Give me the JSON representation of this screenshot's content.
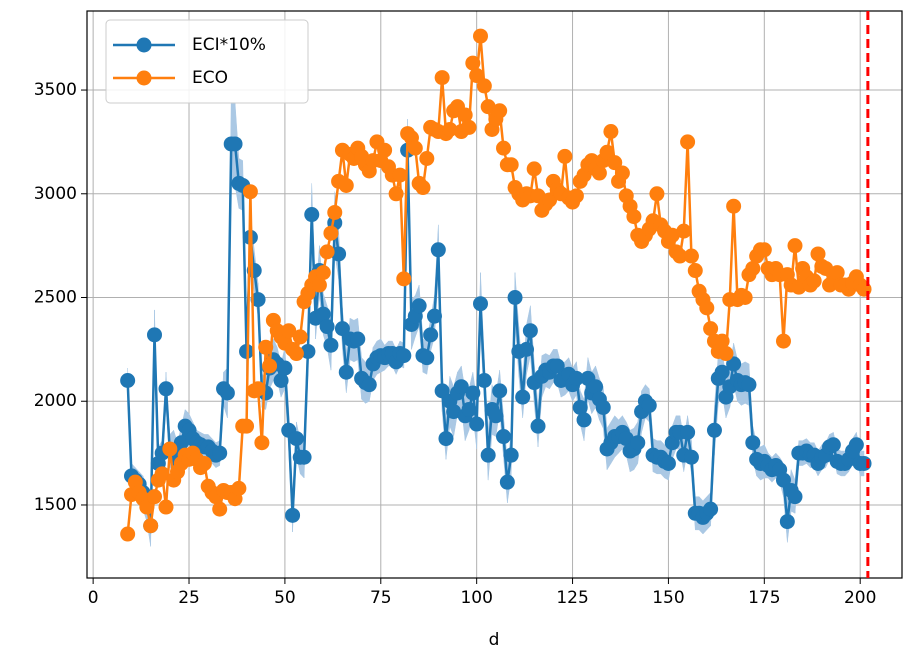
{
  "chart_data": {
    "type": "line",
    "x_label": "d",
    "x": [
      9,
      10,
      11,
      12,
      13,
      14,
      15,
      16,
      17,
      18,
      19,
      20,
      21,
      22,
      23,
      24,
      25,
      26,
      27,
      28,
      29,
      30,
      31,
      32,
      33,
      34,
      35,
      36,
      37,
      38,
      39,
      40,
      41,
      42,
      43,
      44,
      45,
      46,
      47,
      48,
      49,
      50,
      51,
      52,
      53,
      54,
      55,
      56,
      57,
      58,
      59,
      60,
      61,
      62,
      63,
      64,
      65,
      66,
      67,
      68,
      69,
      70,
      71,
      72,
      73,
      74,
      75,
      76,
      77,
      78,
      79,
      80,
      81,
      82,
      83,
      84,
      85,
      86,
      87,
      88,
      89,
      90,
      91,
      92,
      93,
      94,
      95,
      96,
      97,
      98,
      99,
      100,
      101,
      102,
      103,
      104,
      105,
      106,
      107,
      108,
      109,
      110,
      111,
      112,
      113,
      114,
      115,
      116,
      117,
      118,
      119,
      120,
      121,
      122,
      123,
      124,
      125,
      126,
      127,
      128,
      129,
      130,
      131,
      132,
      133,
      134,
      135,
      136,
      137,
      138,
      139,
      140,
      141,
      142,
      143,
      144,
      145,
      146,
      147,
      148,
      149,
      150,
      151,
      152,
      153,
      154,
      155,
      156,
      157,
      158,
      159,
      160,
      161,
      162,
      163,
      164,
      165,
      166,
      167,
      168,
      169,
      170,
      171,
      172,
      173,
      174,
      175,
      176,
      177,
      178,
      179,
      180,
      181,
      182,
      183,
      184,
      185,
      186,
      187,
      188,
      189,
      190,
      191,
      192,
      193,
      194,
      195,
      196,
      197,
      198,
      199,
      200,
      201
    ],
    "series": [
      {
        "name": "ECI*10%",
        "color": "#1f77b4",
        "band_color": "#aac8e4",
        "values": [
          2100,
          1640,
          1620,
          1600,
          1560,
          1500,
          1400,
          2320,
          1700,
          1750,
          2060,
          1760,
          1760,
          1720,
          1800,
          1880,
          1860,
          1820,
          1800,
          1790,
          1780,
          1780,
          1760,
          1740,
          1750,
          2060,
          2040,
          3240,
          3240,
          3050,
          3040,
          2240,
          2790,
          2630,
          2490,
          2050,
          2040,
          2160,
          2200,
          2180,
          2100,
          2160,
          1860,
          1450,
          1820,
          1730,
          1730,
          2240,
          2900,
          2400,
          2630,
          2420,
          2360,
          2270,
          2860,
          2710,
          2350,
          2140,
          2300,
          2290,
          2300,
          2110,
          2090,
          2080,
          2180,
          2210,
          2220,
          2210,
          2230,
          2230,
          2190,
          2230,
          2220,
          3210,
          2370,
          2410,
          2460,
          2220,
          2210,
          2320,
          2410,
          2730,
          2050,
          1820,
          2000,
          1950,
          2040,
          2070,
          1930,
          1960,
          2040,
          1890,
          2470,
          2100,
          1740,
          1960,
          1930,
          2050,
          1830,
          1610,
          1740,
          2500,
          2240,
          2020,
          2250,
          2340,
          2090,
          1880,
          2120,
          2150,
          2140,
          2170,
          2170,
          2100,
          2110,
          2130,
          2080,
          2110,
          1970,
          1910,
          2110,
          2040,
          2070,
          2010,
          1970,
          1770,
          1800,
          1830,
          1830,
          1850,
          1820,
          1760,
          1770,
          1800,
          1950,
          2000,
          1980,
          1740,
          1730,
          1730,
          1710,
          1700,
          1800,
          1850,
          1850,
          1740,
          1850,
          1730,
          1460,
          1460,
          1440,
          1460,
          1480,
          1860,
          2110,
          2140,
          2020,
          2070,
          2180,
          2100,
          2080,
          2090,
          2080,
          1800,
          1720,
          1700,
          1710,
          1690,
          1670,
          1690,
          1670,
          1620,
          1420,
          1570,
          1540,
          1750,
          1750,
          1760,
          1740,
          1740,
          1700,
          1730,
          1740,
          1780,
          1790,
          1710,
          1700,
          1700,
          1720,
          1760,
          1790,
          1700,
          1700
        ],
        "error": [
          60,
          60,
          60,
          60,
          80,
          80,
          100,
          120,
          80,
          60,
          80,
          80,
          100,
          80,
          80,
          80,
          80,
          80,
          60,
          60,
          60,
          60,
          60,
          60,
          60,
          80,
          120,
          200,
          200,
          120,
          120,
          120,
          120,
          100,
          80,
          80,
          80,
          100,
          100,
          80,
          80,
          100,
          100,
          80,
          80,
          80,
          100,
          120,
          150,
          100,
          120,
          100,
          100,
          120,
          150,
          120,
          100,
          100,
          100,
          100,
          100,
          100,
          100,
          80,
          80,
          80,
          80,
          60,
          60,
          60,
          60,
          60,
          60,
          150,
          120,
          100,
          100,
          80,
          80,
          80,
          100,
          120,
          100,
          100,
          120,
          120,
          100,
          100,
          120,
          100,
          100,
          120,
          150,
          100,
          120,
          120,
          100,
          100,
          100,
          100,
          100,
          120,
          120,
          100,
          120,
          120,
          100,
          100,
          100,
          80,
          80,
          80,
          80,
          80,
          80,
          80,
          80,
          80,
          80,
          100,
          100,
          100,
          100,
          100,
          100,
          100,
          100,
          100,
          80,
          80,
          80,
          100,
          100,
          100,
          100,
          80,
          80,
          80,
          80,
          80,
          80,
          80,
          80,
          80,
          80,
          80,
          80,
          80,
          80,
          80,
          80,
          80,
          80,
          120,
          120,
          100,
          100,
          100,
          100,
          100,
          100,
          100,
          100,
          80,
          80,
          80,
          80,
          60,
          60,
          60,
          60,
          80,
          100,
          100,
          80,
          60,
          60,
          60,
          60,
          60,
          60,
          60,
          60,
          60,
          60,
          60,
          60,
          60,
          60,
          60,
          60,
          60,
          60
        ]
      },
      {
        "name": "ECO",
        "color": "#ff7f0e",
        "values": [
          1360,
          1550,
          1610,
          1560,
          1530,
          1490,
          1400,
          1540,
          1620,
          1650,
          1490,
          1770,
          1620,
          1660,
          1700,
          1740,
          1720,
          1750,
          1720,
          1680,
          1700,
          1590,
          1560,
          1540,
          1480,
          1570,
          1560,
          1560,
          1530,
          1580,
          1880,
          1880,
          3010,
          2050,
          2060,
          1800,
          2260,
          2170,
          2390,
          2340,
          2310,
          2280,
          2340,
          2250,
          2230,
          2310,
          2480,
          2520,
          2560,
          2600,
          2560,
          2620,
          2720,
          2810,
          2910,
          3060,
          3210,
          3040,
          3190,
          3170,
          3220,
          3180,
          3140,
          3110,
          3160,
          3250,
          3160,
          3210,
          3130,
          3090,
          3000,
          3090,
          2590,
          3290,
          3270,
          3220,
          3050,
          3030,
          3170,
          3320,
          3310,
          3300,
          3560,
          3290,
          3310,
          3400,
          3420,
          3300,
          3380,
          3320,
          3630,
          3570,
          3760,
          3520,
          3420,
          3310,
          3360,
          3400,
          3220,
          3140,
          3140,
          3030,
          3000,
          2970,
          3000,
          2990,
          3120,
          2990,
          2920,
          2950,
          2970,
          3060,
          3020,
          3000,
          3180,
          2980,
          2960,
          2990,
          3060,
          3090,
          3140,
          3160,
          3120,
          3100,
          3160,
          3200,
          3300,
          3150,
          3060,
          3100,
          2990,
          2940,
          2890,
          2800,
          2770,
          2800,
          2830,
          2870,
          3000,
          2850,
          2820,
          2770,
          2800,
          2720,
          2700,
          2820,
          3250,
          2700,
          2630,
          2530,
          2490,
          2450,
          2350,
          2290,
          2240,
          2290,
          2230,
          2490,
          2940,
          2490,
          2510,
          2500,
          2610,
          2640,
          2700,
          2730,
          2730,
          2640,
          2610,
          2640,
          2610,
          2290,
          2610,
          2560,
          2750,
          2550,
          2640,
          2600,
          2560,
          2580,
          2710,
          2650,
          2640,
          2560,
          2580,
          2620,
          2560,
          2560,
          2540,
          2570,
          2600,
          2560,
          2540
        ]
      }
    ],
    "vline": {
      "x": 202,
      "color": "#ff0000"
    },
    "xlim": [
      -1.6,
      210.9
    ],
    "ylim": [
      1148,
      3881
    ],
    "xticks": [
      0,
      25,
      50,
      75,
      100,
      125,
      150,
      175,
      200
    ],
    "yticks": [
      1500,
      2000,
      2500,
      3000,
      3500
    ],
    "grid": true,
    "legend": "upper left"
  }
}
